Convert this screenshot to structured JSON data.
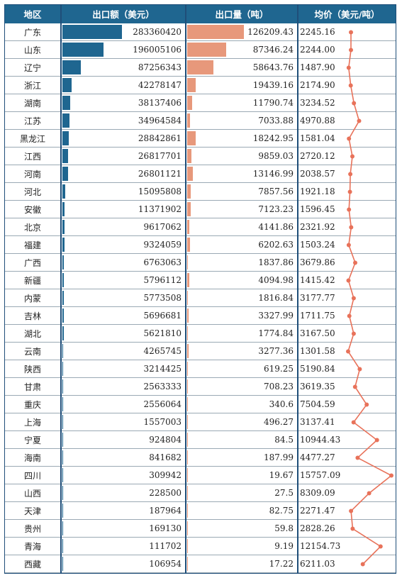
{
  "headers": {
    "region": "地区",
    "amount": "出口额（美元）",
    "quantity": "出口量（吨）",
    "price": "均价（美元/吨）"
  },
  "colors": {
    "header_bg": "#1f6690",
    "amount_bar": "#1f6690",
    "quantity_bar": "#e7987b",
    "price_line": "#e8725a"
  },
  "rows": [
    {
      "region": "广东",
      "amount": "283360420",
      "quantity": "126209.43",
      "price": "2245.16"
    },
    {
      "region": "山东",
      "amount": "196005106",
      "quantity": "87346.24",
      "price": "2244.00"
    },
    {
      "region": "辽宁",
      "amount": "87256343",
      "quantity": "58643.76",
      "price": "1487.90"
    },
    {
      "region": "浙江",
      "amount": "42278147",
      "quantity": "19439.16",
      "price": "2174.90"
    },
    {
      "region": "湖南",
      "amount": "38137406",
      "quantity": "11790.74",
      "price": "3234.52"
    },
    {
      "region": "江苏",
      "amount": "34964584",
      "quantity": "7033.88",
      "price": "4970.88"
    },
    {
      "region": "黑龙江",
      "amount": "28842861",
      "quantity": "18242.95",
      "price": "1581.04"
    },
    {
      "region": "江西",
      "amount": "26817701",
      "quantity": "9859.03",
      "price": "2720.12"
    },
    {
      "region": "河南",
      "amount": "26801121",
      "quantity": "13146.99",
      "price": "2038.57"
    },
    {
      "region": "河北",
      "amount": "15095808",
      "quantity": "7857.56",
      "price": "1921.18"
    },
    {
      "region": "安徽",
      "amount": "11371902",
      "quantity": "7123.23",
      "price": "1596.45"
    },
    {
      "region": "北京",
      "amount": "9617062",
      "quantity": "4141.86",
      "price": "2321.92"
    },
    {
      "region": "福建",
      "amount": "9324059",
      "quantity": "6202.63",
      "price": "1503.24"
    },
    {
      "region": "广西",
      "amount": "6763063",
      "quantity": "1837.86",
      "price": "3679.86"
    },
    {
      "region": "新疆",
      "amount": "5796112",
      "quantity": "4094.98",
      "price": "1415.42"
    },
    {
      "region": "内蒙",
      "amount": "5773508",
      "quantity": "1816.84",
      "price": "3177.77"
    },
    {
      "region": "吉林",
      "amount": "5696681",
      "quantity": "3327.99",
      "price": "1711.75"
    },
    {
      "region": "湖北",
      "amount": "5621810",
      "quantity": "1774.84",
      "price": "3167.50"
    },
    {
      "region": "云南",
      "amount": "4265745",
      "quantity": "3277.36",
      "price": "1301.58"
    },
    {
      "region": "陕西",
      "amount": "3214425",
      "quantity": "619.25",
      "price": "5190.84"
    },
    {
      "region": "甘肃",
      "amount": "2563333",
      "quantity": "708.23",
      "price": "3619.35"
    },
    {
      "region": "重庆",
      "amount": "2556064",
      "quantity": "340.6",
      "price": "7504.59"
    },
    {
      "region": "上海",
      "amount": "1557003",
      "quantity": "496.27",
      "price": "3137.41"
    },
    {
      "region": "宁夏",
      "amount": "924804",
      "quantity": "84.5",
      "price": "10944.43"
    },
    {
      "region": "海南",
      "amount": "841682",
      "quantity": "187.99",
      "price": "4477.27"
    },
    {
      "region": "四川",
      "amount": "309942",
      "quantity": "19.67",
      "price": "15757.09"
    },
    {
      "region": "山西",
      "amount": "228500",
      "quantity": "27.5",
      "price": "8309.09"
    },
    {
      "region": "天津",
      "amount": "187964",
      "quantity": "82.75",
      "price": "2271.47"
    },
    {
      "region": "贵州",
      "amount": "169130",
      "quantity": "59.8",
      "price": "2828.26"
    },
    {
      "region": "青海",
      "amount": "111702",
      "quantity": "9.19",
      "price": "12154.73"
    },
    {
      "region": "西藏",
      "amount": "106954",
      "quantity": "17.22",
      "price": "6211.03"
    }
  ],
  "chart_data": {
    "type": "table",
    "columns": [
      "地区",
      "出口额（美元）",
      "出口量（吨）",
      "均价（美元/吨）"
    ],
    "categories": [
      "广东",
      "山东",
      "辽宁",
      "浙江",
      "湖南",
      "江苏",
      "黑龙江",
      "江西",
      "河南",
      "河北",
      "安徽",
      "北京",
      "福建",
      "广西",
      "新疆",
      "内蒙",
      "吉林",
      "湖北",
      "云南",
      "陕西",
      "甘肃",
      "重庆",
      "上海",
      "宁夏",
      "海南",
      "四川",
      "山西",
      "天津",
      "贵州",
      "青海",
      "西藏"
    ],
    "series": [
      {
        "name": "出口额（美元）",
        "display": "data-bar",
        "values": [
          283360420,
          196005106,
          87256343,
          42278147,
          38137406,
          34964584,
          28842861,
          26817701,
          26801121,
          15095808,
          11371902,
          9617062,
          9324059,
          6763063,
          5796112,
          5773508,
          5696681,
          5621810,
          4265745,
          3214425,
          2563333,
          2556064,
          1557003,
          924804,
          841682,
          309942,
          228500,
          187964,
          169130,
          111702,
          106954
        ]
      },
      {
        "name": "出口量（吨）",
        "display": "data-bar",
        "values": [
          126209.43,
          87346.24,
          58643.76,
          19439.16,
          11790.74,
          7033.88,
          18242.95,
          9859.03,
          13146.99,
          7857.56,
          7123.23,
          4141.86,
          6202.63,
          1837.86,
          4094.98,
          1816.84,
          3327.99,
          1774.84,
          3277.36,
          619.25,
          708.23,
          340.6,
          496.27,
          84.5,
          187.99,
          19.67,
          27.5,
          82.75,
          59.8,
          9.19,
          17.22
        ]
      },
      {
        "name": "均价（美元/吨）",
        "display": "sparkline",
        "values": [
          2245.16,
          2244.0,
          1487.9,
          2174.9,
          3234.52,
          4970.88,
          1581.04,
          2720.12,
          2038.57,
          1921.18,
          1596.45,
          2321.92,
          1503.24,
          3679.86,
          1415.42,
          3177.77,
          1711.75,
          3167.5,
          1301.58,
          5190.84,
          3619.35,
          7504.59,
          3137.41,
          10944.43,
          4477.27,
          15757.09,
          8309.09,
          2271.47,
          2828.26,
          12154.73,
          6211.03
        ]
      }
    ]
  }
}
